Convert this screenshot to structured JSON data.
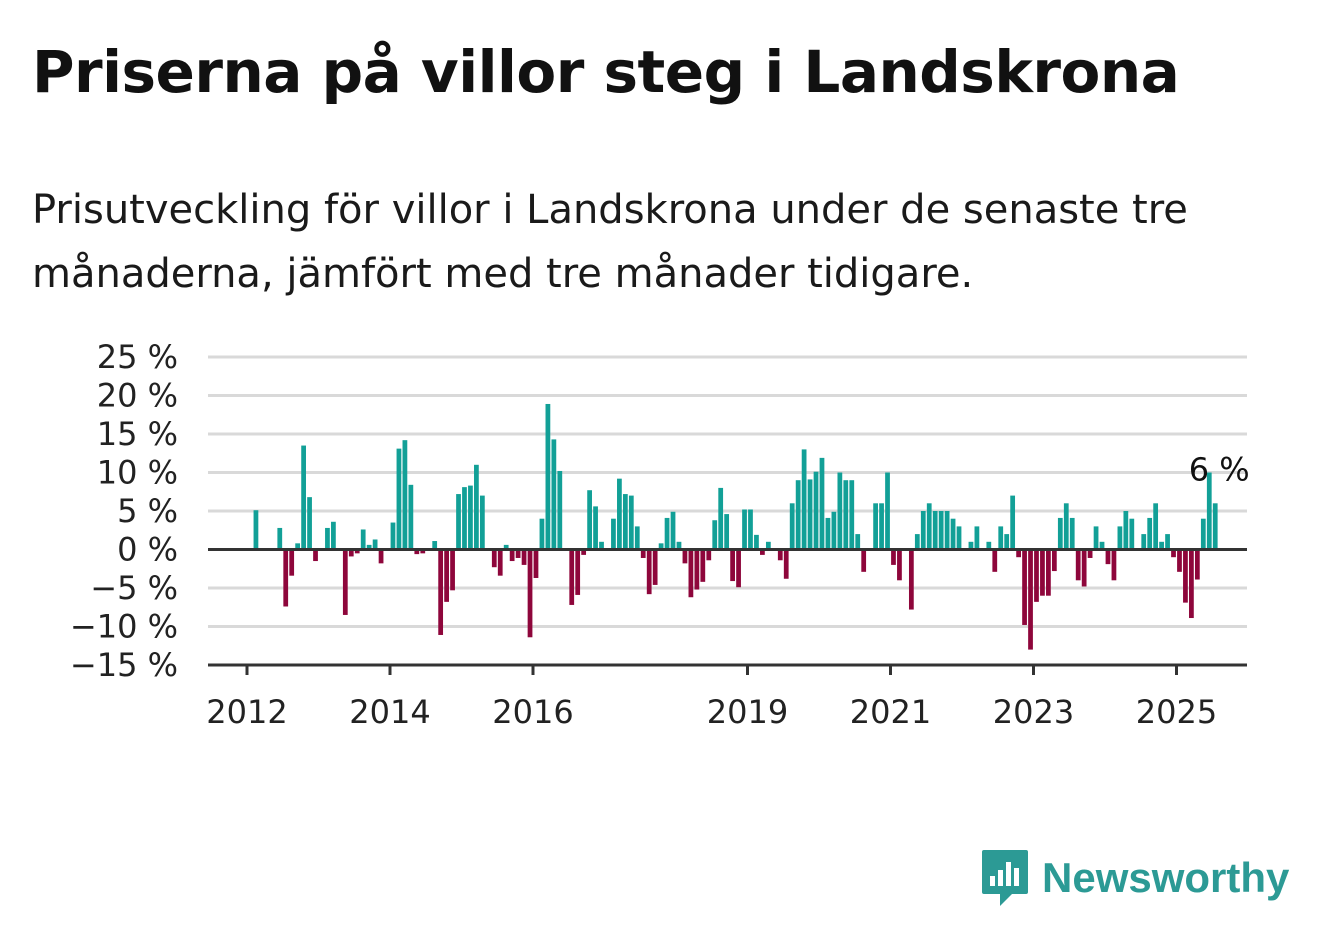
{
  "title": "Priserna på villor steg i Landskrona",
  "subtitle": "Prisutveckling för villor i Landskrona under de senaste tre månaderna, jämfört med tre månader tidigare.",
  "brand": {
    "name": "Newsworthy",
    "icon": "newsworthy-logo-icon",
    "color": "#2c9a95"
  },
  "colors": {
    "positive": "#12a097",
    "negative": "#8e063b",
    "grid": "#d9d9d9",
    "axis": "#333333"
  },
  "chart_data": {
    "type": "bar",
    "title": "",
    "xlabel": "",
    "ylabel": "",
    "ylim": [
      -15,
      25
    ],
    "yticks": [
      {
        "value": 25,
        "label": "25 %"
      },
      {
        "value": 20,
        "label": "20 %"
      },
      {
        "value": 15,
        "label": "15 %"
      },
      {
        "value": 10,
        "label": "10 %"
      },
      {
        "value": 5,
        "label": "5 %"
      },
      {
        "value": 0,
        "label": "0 %"
      },
      {
        "value": -5,
        "label": "−5 %"
      },
      {
        "value": -10,
        "label": "−10 %"
      },
      {
        "value": -15,
        "label": "−15 %"
      }
    ],
    "xticks": [
      {
        "year": 2012,
        "label": "2012"
      },
      {
        "year": 2014,
        "label": "2014"
      },
      {
        "year": 2016,
        "label": "2016"
      },
      {
        "year": 2019,
        "label": "2019"
      },
      {
        "year": 2021,
        "label": "2021"
      },
      {
        "year": 2023,
        "label": "2023"
      },
      {
        "year": 2025,
        "label": "2025"
      }
    ],
    "grid": true,
    "start": "2012-02",
    "frequency": "monthly",
    "values": [
      5.1,
      null,
      null,
      null,
      2.8,
      -7.4,
      -3.4,
      0.8,
      13.5,
      6.8,
      -1.5,
      null,
      2.8,
      3.6,
      null,
      -8.5,
      -0.9,
      -0.5,
      2.6,
      0.6,
      1.3,
      -1.8,
      null,
      3.5,
      13.1,
      14.2,
      8.4,
      -0.6,
      -0.5,
      null,
      1.1,
      -11.1,
      -6.8,
      -5.3,
      7.2,
      8.1,
      8.3,
      11.0,
      7.0,
      null,
      -2.3,
      -3.4,
      0.6,
      -1.5,
      -1.1,
      -2.0,
      -11.4,
      -3.7,
      4.0,
      18.9,
      14.3,
      10.2,
      null,
      -7.2,
      -5.9,
      -0.7,
      7.7,
      5.6,
      1.0,
      null,
      4.0,
      9.2,
      7.2,
      7.0,
      3.0,
      -1.1,
      -5.8,
      -4.6,
      0.8,
      4.1,
      4.9,
      1.0,
      -1.8,
      -6.2,
      -5.2,
      -4.2,
      -1.4,
      3.8,
      8.0,
      4.6,
      -4.1,
      -4.9,
      5.2,
      5.2,
      1.9,
      -0.7,
      1.0,
      null,
      -1.4,
      -3.8,
      6.0,
      9.0,
      13.0,
      9.1,
      10.1,
      11.9,
      4.1,
      4.9,
      10.0,
      9.0,
      9.0,
      2.0,
      -2.9,
      null,
      6.0,
      6.0,
      10.0,
      -2.0,
      -4.0,
      null,
      -7.8,
      2.0,
      5.0,
      6.0,
      5.0,
      5.0,
      5.0,
      4.0,
      3.0,
      null,
      1.0,
      3.0,
      null,
      1.0,
      -2.9,
      3.0,
      2.0,
      7.0,
      -1.0,
      -9.8,
      -13.0,
      -6.8,
      -6.0,
      -6.0,
      -2.8,
      4.1,
      6.0,
      4.1,
      -4.0,
      -4.8,
      -1.1,
      3.0,
      1.0,
      -1.9,
      -4.0,
      3.0,
      5.0,
      4.0,
      null,
      2.0,
      4.1,
      6.0,
      1.0,
      2.0,
      -1.0,
      -2.9,
      -6.9,
      -8.9,
      -3.9,
      4.0,
      10.0,
      6.0
    ],
    "annotation": {
      "label": "6 %",
      "series_index": 1,
      "value": 6
    }
  }
}
